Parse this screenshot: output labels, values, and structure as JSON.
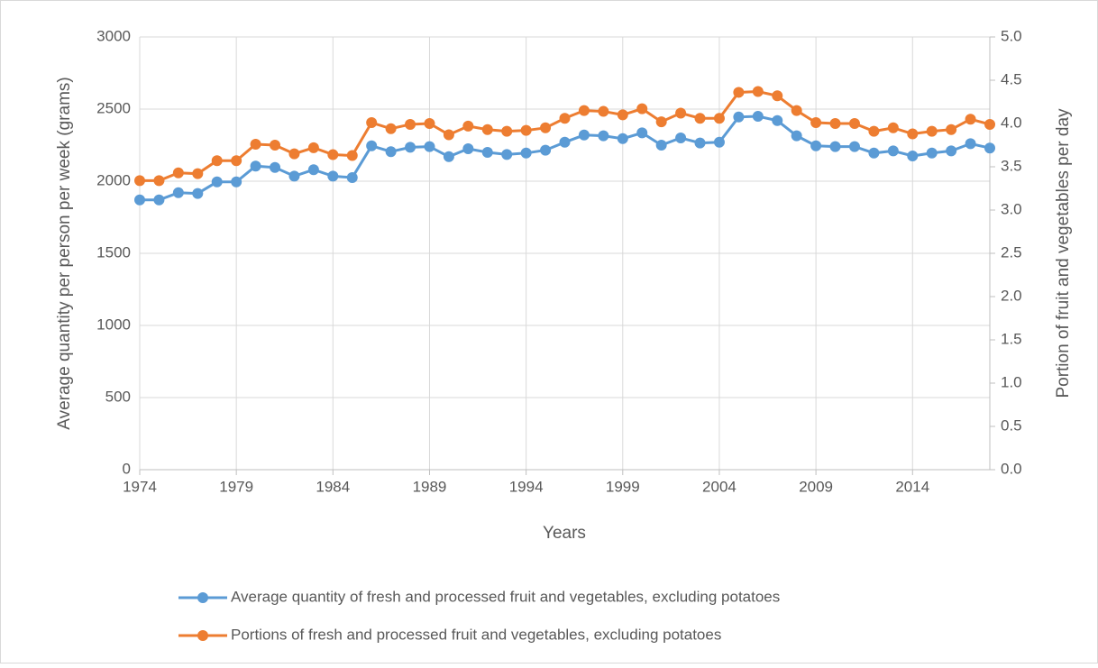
{
  "chart_data": {
    "type": "line",
    "x_label": "Years",
    "y_label": "Average quantity per person per week (grams)",
    "y2_label": "Portion of fruit and vegetables per day",
    "x": [
      1974,
      1975,
      1976,
      1977,
      1978,
      1979,
      1980,
      1981,
      1982,
      1983,
      1984,
      1985,
      1986,
      1987,
      1988,
      1989,
      1990,
      1991,
      1992,
      1993,
      1994,
      1995,
      1996,
      1997,
      1998,
      1999,
      2000,
      2001,
      2002,
      2003,
      2004,
      2005,
      2006,
      2007,
      2008,
      2009,
      2010,
      2011,
      2012,
      2013,
      2014,
      2015,
      2016,
      2017,
      2018
    ],
    "xlim": [
      1974,
      2018
    ],
    "xticks": [
      1974,
      1979,
      1984,
      1989,
      1994,
      1999,
      2004,
      2009,
      2014
    ],
    "ylim": [
      0,
      3000
    ],
    "yticks": [
      0,
      500,
      1000,
      1500,
      2000,
      2500,
      3000
    ],
    "y2lim": [
      0,
      5
    ],
    "y2ticks": [
      {
        "value": 0,
        "label": "0.0"
      },
      0.5,
      {
        "value": 1,
        "label": "1.0"
      },
      1.5,
      {
        "value": 2,
        "label": "2.0"
      },
      2.5,
      {
        "value": 3,
        "label": "3.0"
      },
      3.5,
      {
        "value": 4,
        "label": "4.0"
      },
      4.5,
      {
        "value": 5,
        "label": "5.0"
      }
    ],
    "grid": true,
    "legend": "bottom",
    "series": [
      {
        "name": "Average quantity of fresh and processed fruit and vegetables, excluding potatoes",
        "color": "#5b9bd5",
        "values": [
          1870,
          1870,
          1920,
          1915,
          1995,
          1995,
          2105,
          2095,
          2035,
          2080,
          2035,
          2025,
          2245,
          2205,
          2235,
          2240,
          2170,
          2225,
          2200,
          2185,
          2195,
          2215,
          2270,
          2320,
          2315,
          2295,
          2335,
          2250,
          2300,
          2265,
          2270,
          2445,
          2450,
          2420,
          2315,
          2245,
          2240,
          2240,
          2195,
          2210,
          2175,
          2195,
          2210,
          2260,
          2230
        ]
      },
      {
        "name": "Portions of fresh and processed fruit and vegetables, excluding potatoes",
        "color": "#ed7d31",
        "axis": "y2",
        "values": [
          3.34,
          3.34,
          3.43,
          3.42,
          3.57,
          3.57,
          3.76,
          3.75,
          3.65,
          3.72,
          3.64,
          3.63,
          4.01,
          3.94,
          3.99,
          4.0,
          3.87,
          3.97,
          3.93,
          3.91,
          3.92,
          3.95,
          4.06,
          4.15,
          4.14,
          4.1,
          4.17,
          4.02,
          4.12,
          4.06,
          4.06,
          4.36,
          4.37,
          4.32,
          4.15,
          4.01,
          4.0,
          4.0,
          3.91,
          3.95,
          3.88,
          3.91,
          3.93,
          4.05,
          3.99
        ]
      }
    ]
  }
}
